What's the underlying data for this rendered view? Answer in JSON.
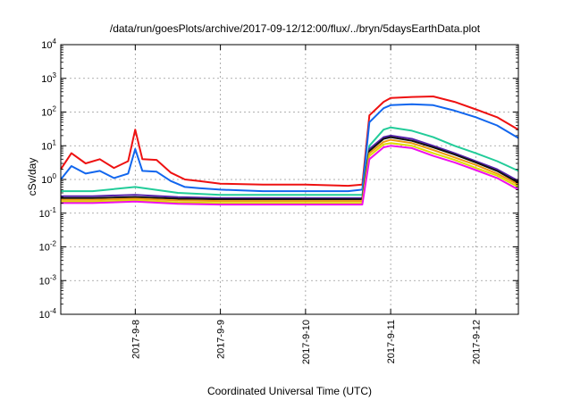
{
  "chart_data": {
    "type": "line",
    "title": "/data/run/goesPlots/archive/2017-09-12/12:00/flux/../bryn/5daysEarthData.plot",
    "xlabel": "Coordinated Universal Time (UTC)",
    "ylabel": "cSv/day",
    "yscale": "log",
    "ylim": [
      0.0001,
      10000
    ],
    "xlim": [
      "2017-09-07 03:00",
      "2017-09-12 12:00"
    ],
    "grid": true,
    "legend": "none",
    "y_ticks": [
      {
        "base": "10",
        "exp": "-4",
        "value": 0.0001
      },
      {
        "base": "10",
        "exp": "-3",
        "value": 0.001
      },
      {
        "base": "10",
        "exp": "-2",
        "value": 0.01
      },
      {
        "base": "10",
        "exp": "-1",
        "value": 0.1
      },
      {
        "base": "10",
        "exp": "0",
        "value": 1
      },
      {
        "base": "10",
        "exp": "1",
        "value": 10
      },
      {
        "base": "10",
        "exp": "2",
        "value": 100
      },
      {
        "base": "10",
        "exp": "3",
        "value": 1000
      },
      {
        "base": "10",
        "exp": "4",
        "value": 10000
      }
    ],
    "x_ticks": [
      {
        "label": "2017-9-8",
        "value": "2017-09-08 00:00"
      },
      {
        "label": "2017-9-9",
        "value": "2017-09-09 00:00"
      },
      {
        "label": "2017-9-10",
        "value": "2017-09-10 00:00"
      },
      {
        "label": "2017-9-11",
        "value": "2017-09-11 00:00"
      },
      {
        "label": "2017-9-12",
        "value": "2017-09-12 00:00"
      }
    ],
    "series": [
      {
        "color": "#ee1111",
        "x": [
          "2017-09-07 03:00",
          "2017-09-07 06:00",
          "2017-09-07 10:00",
          "2017-09-07 14:00",
          "2017-09-07 18:00",
          "2017-09-07 22:00",
          "2017-09-08 00:00",
          "2017-09-08 02:00",
          "2017-09-08 06:00",
          "2017-09-08 10:00",
          "2017-09-08 14:00",
          "2017-09-08 18:00",
          "2017-09-09 00:00",
          "2017-09-09 12:00",
          "2017-09-10 00:00",
          "2017-09-10 12:00",
          "2017-09-10 16:00",
          "2017-09-10 18:00",
          "2017-09-10 22:00",
          "2017-09-11 00:00",
          "2017-09-11 06:00",
          "2017-09-11 12:00",
          "2017-09-11 18:00",
          "2017-09-12 00:00",
          "2017-09-12 06:00",
          "2017-09-12 12:00"
        ],
        "y": [
          2.0,
          6.0,
          3.0,
          4.0,
          2.2,
          3.5,
          30,
          4.0,
          3.8,
          1.6,
          1.0,
          0.9,
          0.75,
          0.7,
          0.7,
          0.65,
          0.7,
          80,
          200,
          260,
          280,
          290,
          200,
          120,
          70,
          30
        ]
      },
      {
        "color": "#1166ee",
        "x": [
          "2017-09-07 03:00",
          "2017-09-07 06:00",
          "2017-09-07 10:00",
          "2017-09-07 14:00",
          "2017-09-07 18:00",
          "2017-09-07 22:00",
          "2017-09-08 00:00",
          "2017-09-08 02:00",
          "2017-09-08 06:00",
          "2017-09-08 10:00",
          "2017-09-08 14:00",
          "2017-09-08 18:00",
          "2017-09-09 00:00",
          "2017-09-09 12:00",
          "2017-09-10 00:00",
          "2017-09-10 12:00",
          "2017-09-10 16:00",
          "2017-09-10 18:00",
          "2017-09-10 22:00",
          "2017-09-11 00:00",
          "2017-09-11 06:00",
          "2017-09-11 12:00",
          "2017-09-11 18:00",
          "2017-09-12 00:00",
          "2017-09-12 06:00",
          "2017-09-12 12:00"
        ],
        "y": [
          1.0,
          2.5,
          1.5,
          1.8,
          1.1,
          1.5,
          8.0,
          1.8,
          1.7,
          0.9,
          0.6,
          0.55,
          0.5,
          0.45,
          0.45,
          0.45,
          0.5,
          50,
          130,
          160,
          170,
          160,
          110,
          70,
          40,
          17
        ]
      },
      {
        "color": "#22cc99",
        "x": [
          "2017-09-07 03:00",
          "2017-09-07 12:00",
          "2017-09-08 00:00",
          "2017-09-08 12:00",
          "2017-09-09 00:00",
          "2017-09-10 00:00",
          "2017-09-10 16:00",
          "2017-09-10 18:00",
          "2017-09-10 22:00",
          "2017-09-11 00:00",
          "2017-09-11 06:00",
          "2017-09-11 12:00",
          "2017-09-11 18:00",
          "2017-09-12 00:00",
          "2017-09-12 06:00",
          "2017-09-12 12:00"
        ],
        "y": [
          0.45,
          0.45,
          0.6,
          0.4,
          0.35,
          0.35,
          0.35,
          10,
          30,
          35,
          28,
          18,
          10,
          6,
          3.5,
          1.8
        ]
      },
      {
        "color": "#5522aa",
        "x": [
          "2017-09-07 03:00",
          "2017-09-07 12:00",
          "2017-09-08 00:00",
          "2017-09-08 12:00",
          "2017-09-09 00:00",
          "2017-09-10 00:00",
          "2017-09-10 16:00",
          "2017-09-10 18:00",
          "2017-09-10 22:00",
          "2017-09-11 00:00",
          "2017-09-11 06:00",
          "2017-09-11 12:00",
          "2017-09-11 18:00",
          "2017-09-12 00:00",
          "2017-09-12 06:00",
          "2017-09-12 12:00"
        ],
        "y": [
          0.32,
          0.32,
          0.35,
          0.3,
          0.28,
          0.28,
          0.28,
          8,
          18,
          20,
          16,
          10,
          6,
          3.5,
          2,
          0.9
        ]
      },
      {
        "color": "#111111",
        "x": [
          "2017-09-07 03:00",
          "2017-09-07 12:00",
          "2017-09-08 00:00",
          "2017-09-08 12:00",
          "2017-09-09 00:00",
          "2017-09-10 00:00",
          "2017-09-10 16:00",
          "2017-09-10 18:00",
          "2017-09-10 22:00",
          "2017-09-11 00:00",
          "2017-09-11 06:00",
          "2017-09-11 12:00",
          "2017-09-11 18:00",
          "2017-09-12 00:00",
          "2017-09-12 06:00",
          "2017-09-12 12:00"
        ],
        "y": [
          0.28,
          0.28,
          0.3,
          0.27,
          0.26,
          0.26,
          0.26,
          7,
          16,
          18,
          14,
          9,
          5.5,
          3.2,
          1.8,
          0.8
        ]
      },
      {
        "color": "#ee9911",
        "x": [
          "2017-09-07 03:00",
          "2017-09-07 12:00",
          "2017-09-08 00:00",
          "2017-09-08 12:00",
          "2017-09-09 00:00",
          "2017-09-10 00:00",
          "2017-09-10 16:00",
          "2017-09-10 18:00",
          "2017-09-10 22:00",
          "2017-09-11 00:00",
          "2017-09-11 06:00",
          "2017-09-11 12:00",
          "2017-09-11 18:00",
          "2017-09-12 00:00",
          "2017-09-12 06:00",
          "2017-09-12 12:00"
        ],
        "y": [
          0.25,
          0.25,
          0.27,
          0.24,
          0.23,
          0.23,
          0.23,
          6,
          13,
          15,
          12,
          7.5,
          4.5,
          2.7,
          1.5,
          0.7
        ]
      },
      {
        "color": "#dddd00",
        "x": [
          "2017-09-07 03:00",
          "2017-09-07 12:00",
          "2017-09-08 00:00",
          "2017-09-08 12:00",
          "2017-09-09 00:00",
          "2017-09-10 00:00",
          "2017-09-10 16:00",
          "2017-09-10 18:00",
          "2017-09-10 22:00",
          "2017-09-11 00:00",
          "2017-09-11 06:00",
          "2017-09-11 12:00",
          "2017-09-11 18:00",
          "2017-09-12 00:00",
          "2017-09-12 06:00",
          "2017-09-12 12:00"
        ],
        "y": [
          0.22,
          0.22,
          0.24,
          0.21,
          0.2,
          0.2,
          0.2,
          5,
          11,
          12,
          10,
          6,
          3.8,
          2.2,
          1.3,
          0.6
        ]
      },
      {
        "color": "#ee11ee",
        "x": [
          "2017-09-07 03:00",
          "2017-09-07 12:00",
          "2017-09-08 00:00",
          "2017-09-08 12:00",
          "2017-09-09 00:00",
          "2017-09-10 00:00",
          "2017-09-10 16:00",
          "2017-09-10 18:00",
          "2017-09-10 22:00",
          "2017-09-11 00:00",
          "2017-09-11 06:00",
          "2017-09-11 12:00",
          "2017-09-11 18:00",
          "2017-09-12 00:00",
          "2017-09-12 06:00",
          "2017-09-12 12:00"
        ],
        "y": [
          0.2,
          0.2,
          0.22,
          0.19,
          0.18,
          0.18,
          0.18,
          4,
          9,
          10,
          8.5,
          5,
          3.2,
          1.9,
          1.1,
          0.5
        ]
      }
    ]
  }
}
